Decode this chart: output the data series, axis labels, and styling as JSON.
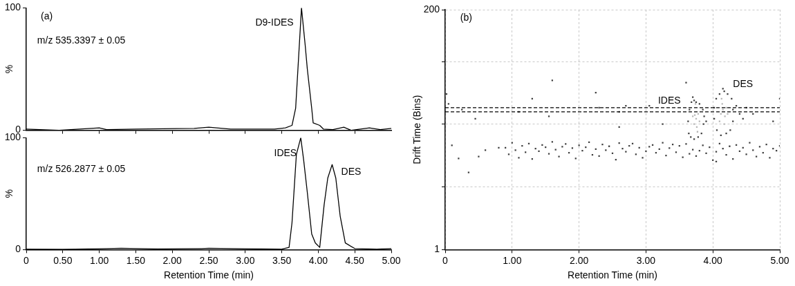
{
  "chart_data": [
    {
      "type": "line",
      "ylabel": "%",
      "xlim": [
        0,
        5
      ],
      "xticks": [
        {
          "value": 0.5,
          "label": null
        },
        {
          "value": 1,
          "label": null
        },
        {
          "value": 1.5,
          "label": null
        },
        {
          "value": 2,
          "label": null
        },
        {
          "value": 2.5,
          "label": null
        },
        {
          "value": 3,
          "label": null
        },
        {
          "value": 3.5,
          "label": null
        },
        {
          "value": 4,
          "label": null
        },
        {
          "value": 4.5,
          "label": null
        }
      ],
      "ylim": [
        0,
        100
      ],
      "yticks": [
        0,
        100
      ],
      "tick_labels": "y",
      "annotations": [
        "(a)",
        "m/z 535.3397 ± 0.05",
        "D9-IDES"
      ],
      "series": [
        {
          "color": "#000000",
          "x": [
            0,
            0.45,
            1.0,
            1.1,
            1.5,
            2.3,
            2.5,
            2.8,
            3.4,
            3.55,
            3.64,
            3.69,
            3.77,
            3.82,
            3.85,
            3.91,
            3.93,
            4.02,
            4.07,
            4.2,
            4.35,
            4.45,
            4.7,
            4.85,
            5.0
          ],
          "values": [
            1,
            0,
            2,
            0.5,
            1,
            1.5,
            2.5,
            1,
            1,
            2,
            4,
            18,
            100,
            70,
            50,
            18,
            6,
            4,
            1,
            0.5,
            2.5,
            0,
            2,
            0.5,
            1.5
          ]
        }
      ]
    },
    {
      "type": "line",
      "ylabel": "%",
      "xlabel": "Retention Time (min)",
      "xlim": [
        0,
        5
      ],
      "xticks": [
        0,
        {
          "value": 0.5,
          "label": "0.50"
        },
        {
          "value": 1,
          "label": "1.00"
        },
        {
          "value": 1.5,
          "label": "1.50"
        },
        {
          "value": 2,
          "label": "2.00"
        },
        {
          "value": 2.5,
          "label": "2.50"
        },
        {
          "value": 3,
          "label": "3.00"
        },
        {
          "value": 3.5,
          "label": "3.50"
        },
        {
          "value": 4,
          "label": "4.00"
        },
        {
          "value": 4.5,
          "label": "4.50"
        },
        {
          "value": 5,
          "label": "5.00"
        }
      ],
      "ylim": [
        0,
        100
      ],
      "yticks": [
        0,
        100
      ],
      "annotations": [
        "m/z 526.2877 ± 0.05",
        "IDES",
        "DES"
      ],
      "series": [
        {
          "color": "#000000",
          "x": [
            0,
            0.5,
            1.0,
            1.3,
            1.8,
            2.4,
            2.5,
            3.0,
            3.5,
            3.6,
            3.64,
            3.7,
            3.76,
            3.8,
            3.85,
            3.91,
            3.96,
            4.02,
            4.08,
            4.13,
            4.19,
            4.24,
            4.3,
            4.37,
            4.5,
            4.6,
            4.8,
            5.0
          ],
          "values": [
            0.5,
            0.3,
            0.8,
            1.2,
            0.6,
            1,
            1.2,
            0.8,
            0.5,
            2,
            24,
            85,
            100,
            80,
            51,
            14,
            6,
            2,
            40,
            64,
            76,
            64,
            30,
            6,
            1,
            0.8,
            0.5,
            1
          ]
        }
      ]
    },
    {
      "type": "scatter",
      "xlabel": "Retention Time (min)",
      "ylabel": "Drift Time (Bins)",
      "marker": "square",
      "log": "y",
      "grid": true,
      "xlim": [
        0,
        5
      ],
      "xticks": [
        0,
        {
          "value": 1,
          "label": "1.00"
        },
        {
          "value": 2,
          "label": "2.00"
        },
        {
          "value": 3,
          "label": "3.00"
        },
        {
          "value": 4,
          "label": "4.00"
        },
        {
          "value": 5,
          "label": "5.00"
        }
      ],
      "ylim": [
        1,
        200
      ],
      "yticks": [
        1,
        {
          "value": 4,
          "label": null
        },
        {
          "value": 16,
          "label": null
        },
        {
          "value": 63,
          "label": null
        },
        200
      ],
      "ref_lines": [
        {
          "axis": "y",
          "value": 23,
          "line_style": "dashed",
          "color": "#000000"
        },
        {
          "axis": "y",
          "value": 21,
          "line_style": "dashed",
          "color": "#000000"
        }
      ],
      "annotations": [
        "(b)",
        "IDES",
        "DES"
      ],
      "series": [
        {
          "color": "#404040",
          "x": [
            0.9,
            0.95,
            1.0,
            1.05,
            1.1,
            1.15,
            1.2,
            1.25,
            1.3,
            1.35,
            1.4,
            1.45,
            1.5,
            1.55,
            1.6,
            1.65,
            1.7,
            1.75,
            1.8,
            1.85,
            1.9,
            1.95,
            2.0,
            2.05,
            2.1,
            2.15,
            2.2,
            2.25,
            2.3,
            2.35,
            2.4,
            2.45,
            2.5,
            2.55,
            2.6,
            2.65,
            2.7,
            2.75,
            2.8,
            2.85,
            2.9,
            2.95,
            3.0,
            3.05,
            3.1,
            3.15,
            3.2,
            3.25,
            3.3,
            3.35,
            3.4,
            3.45,
            3.5,
            3.55,
            3.6,
            3.65,
            3.7,
            3.75,
            3.8,
            3.85,
            3.9,
            3.95,
            4.0,
            4.05,
            4.1,
            4.15,
            4.2,
            4.25,
            4.3,
            4.35,
            4.4,
            4.45,
            4.5,
            4.55,
            4.6,
            4.65,
            4.7,
            4.75,
            4.8,
            4.85,
            4.9,
            4.95,
            5.0,
            0.02,
            0.05,
            0.1,
            0.2,
            0.25,
            0.35,
            0.45,
            0.5,
            0.6,
            0.8,
            1.1,
            1.3,
            1.55,
            1.6,
            2.25,
            2.3,
            2.6,
            2.7,
            2.6,
            3.05,
            3.25,
            3.6,
            4.05,
            4.5,
            4.6,
            4.9,
            5.0,
            3.68,
            3.72,
            3.65,
            3.63,
            3.64,
            3.67,
            3.72,
            3.78,
            3.83,
            3.86,
            3.87,
            3.85,
            3.8,
            3.75,
            3.9,
            3.7,
            4.05,
            4.1,
            4.17,
            4.22,
            4.28,
            4.3,
            4.3,
            4.26,
            4.2,
            4.12,
            4.06,
            4.02,
            4.02,
            4.35,
            4.4,
            4.45,
            4.15
          ],
          "values": [
            9.5,
            8.2,
            10.6,
            9.0,
            7.6,
            9.9,
            8.6,
            10.4,
            7.4,
            9.3,
            8.8,
            10.1,
            9.6,
            8.3,
            10.8,
            9.1,
            7.8,
            9.7,
            10.3,
            8.5,
            9.4,
            7.5,
            10.0,
            8.9,
            9.6,
            10.7,
            8.1,
            9.2,
            7.9,
            10.2,
            9.0,
            9.8,
            8.4,
            7.3,
            10.5,
            9.3,
            8.7,
            9.9,
            10.4,
            8.2,
            9.5,
            7.6,
            8.8,
            9.7,
            10.1,
            8.5,
            9.2,
            10.6,
            8.0,
            9.4,
            10.2,
            8.6,
            9.9,
            7.7,
            10.3,
            8.3,
            9.1,
            7.9,
            8.9,
            10.0,
            8.4,
            9.6,
            7.2,
            8.7,
            10.4,
            9.3,
            8.1,
            9.8,
            7.4,
            10.1,
            8.8,
            9.5,
            8.2,
            10.6,
            9.0,
            7.8,
            9.7,
            8.5,
            10.2,
            7.6,
            9.3,
            8.9,
            9.9,
            31,
            25,
            10,
            7.5,
            22,
            5.5,
            18,
            7.8,
            9,
            9.5,
            21,
            28,
            19,
            42,
            32,
            23,
            21,
            24,
            15,
            24,
            16,
            40,
            7,
            23,
            20,
            17,
            28,
            26,
            27,
            22,
            17,
            13,
            12,
            11.5,
            12,
            13,
            16,
            19,
            22,
            25,
            26,
            17,
            29,
            28,
            31,
            33,
            31,
            28,
            22,
            17,
            14,
            13,
            12.5,
            14,
            18,
            23,
            24,
            20,
            18,
            35
          ]
        },
        {
          "color": "#b8b8b8",
          "x": [
            3.72,
            3.75,
            3.78,
            3.73,
            3.76,
            3.8,
            3.7,
            3.74,
            3.77,
            4.12,
            4.15,
            4.18,
            4.14,
            4.2,
            4.1,
            4.17,
            4.22,
            4.13
          ],
          "values": [
            16,
            18,
            20,
            19.5,
            15,
            17,
            19,
            25,
            13.5,
            20,
            22,
            19,
            25,
            23,
            17,
            16,
            20,
            28
          ]
        }
      ]
    }
  ]
}
